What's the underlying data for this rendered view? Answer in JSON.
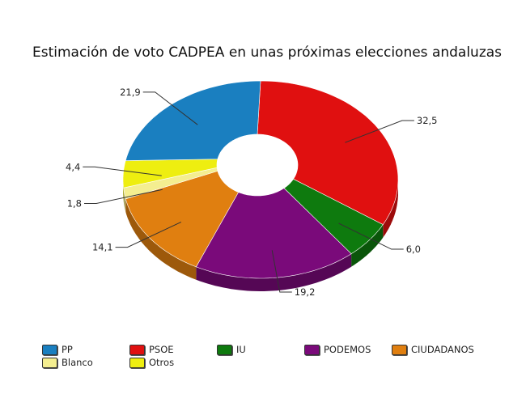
{
  "chart_data": {
    "type": "pie",
    "variant": "3d-donut",
    "title": "Estimación de voto CADPEA en unas próximas elecciones andaluzas",
    "slices": [
      {
        "label": "PSOE",
        "value": 32.5,
        "value_label": "32,5",
        "color": "#e01010"
      },
      {
        "label": "IU",
        "value": 6.0,
        "value_label": "6,0",
        "color": "#0e7a0e"
      },
      {
        "label": "PODEMOS",
        "value": 19.2,
        "value_label": "19,2",
        "color": "#7a0a7a"
      },
      {
        "label": "CIUDADANOS",
        "value": 14.1,
        "value_label": "14,1",
        "color": "#e07f10"
      },
      {
        "label": "Blanco",
        "value": 1.8,
        "value_label": "1,8",
        "color": "#f4ee90"
      },
      {
        "label": "Otros",
        "value": 4.4,
        "value_label": "4,4",
        "color": "#eeee10"
      },
      {
        "label": "PP",
        "value": 21.9,
        "value_label": "21,9",
        "color": "#1a7fc0"
      }
    ],
    "legend_order": [
      "PP",
      "PSOE",
      "IU",
      "PODEMOS",
      "CIUDADANOS",
      "Blanco",
      "Otros"
    ],
    "legend_placement": "bottom"
  }
}
